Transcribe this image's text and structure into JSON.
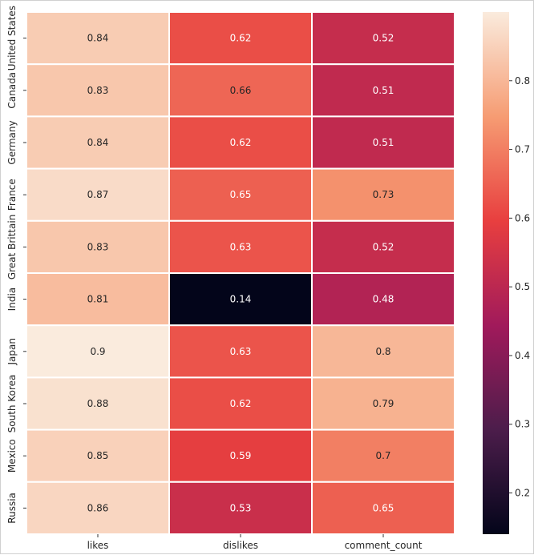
{
  "chart_data": {
    "type": "heatmap",
    "title": "",
    "xlabel": "",
    "ylabel": "",
    "x_categories": [
      "likes",
      "dislikes",
      "comment_count"
    ],
    "y_categories": [
      "United States",
      "Canada",
      "Germany",
      "France",
      "Great Brittain",
      "India",
      "Japan",
      "South Korea",
      "Mexico",
      "Russia"
    ],
    "values": [
      [
        0.84,
        0.62,
        0.52
      ],
      [
        0.83,
        0.66,
        0.51
      ],
      [
        0.84,
        0.62,
        0.51
      ],
      [
        0.87,
        0.65,
        0.73
      ],
      [
        0.83,
        0.63,
        0.52
      ],
      [
        0.81,
        0.14,
        0.48
      ],
      [
        0.9,
        0.63,
        0.8
      ],
      [
        0.88,
        0.62,
        0.79
      ],
      [
        0.85,
        0.59,
        0.7
      ],
      [
        0.86,
        0.53,
        0.65
      ]
    ],
    "value_labels": [
      [
        "0.84",
        "0.62",
        "0.52"
      ],
      [
        "0.83",
        "0.66",
        "0.51"
      ],
      [
        "0.84",
        "0.62",
        "0.51"
      ],
      [
        "0.87",
        "0.65",
        "0.73"
      ],
      [
        "0.83",
        "0.63",
        "0.52"
      ],
      [
        "0.81",
        "0.14",
        "0.48"
      ],
      [
        "0.9",
        "0.63",
        "0.8"
      ],
      [
        "0.88",
        "0.62",
        "0.79"
      ],
      [
        "0.85",
        "0.59",
        "0.7"
      ],
      [
        "0.86",
        "0.53",
        "0.65"
      ]
    ],
    "colorbar": {
      "vmin": 0.14,
      "vmax": 0.9,
      "ticks": [
        0.2,
        0.3,
        0.4,
        0.5,
        0.6,
        0.7,
        0.8
      ],
      "tick_labels": [
        "0.2",
        "0.3",
        "0.4",
        "0.5",
        "0.6",
        "0.7",
        "0.8"
      ]
    },
    "colormap": [
      "#03051a",
      "#4c1d4b",
      "#a11a5b",
      "#e83f3f",
      "#f69c73",
      "#faebdd"
    ],
    "grid": false,
    "cell_border_color": "#ffffff"
  }
}
